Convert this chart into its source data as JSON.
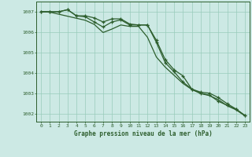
{
  "title": "Graphe pression niveau de la mer (hPa)",
  "background_color": "#cce9e4",
  "plot_bg_color": "#cce9e4",
  "grid_color": "#99ccbb",
  "line_color": "#2d5e2d",
  "marker_color": "#2d5e2d",
  "xlim": [
    -0.5,
    23.5
  ],
  "ylim": [
    1001.6,
    1007.5
  ],
  "xticks": [
    0,
    1,
    2,
    3,
    4,
    5,
    6,
    7,
    8,
    9,
    10,
    11,
    12,
    13,
    14,
    15,
    16,
    17,
    18,
    19,
    20,
    21,
    22,
    23
  ],
  "yticks": [
    1002,
    1003,
    1004,
    1005,
    1006,
    1007
  ],
  "series1_x": [
    0,
    1,
    2,
    3,
    4,
    5,
    6,
    7,
    8,
    9,
    10,
    11,
    12,
    13,
    14,
    15,
    16,
    17,
    18,
    19,
    20,
    21,
    22,
    23
  ],
  "series1_y": [
    1007.0,
    1007.0,
    1007.0,
    1007.1,
    1006.8,
    1006.8,
    1006.7,
    1006.5,
    1006.65,
    1006.65,
    1006.4,
    1006.35,
    1006.35,
    1005.6,
    1004.65,
    1004.15,
    1003.85,
    1003.2,
    1003.05,
    1003.0,
    1002.78,
    1002.48,
    1002.22,
    1001.9
  ],
  "series2_x": [
    0,
    1,
    2,
    3,
    4,
    5,
    6,
    7,
    8,
    9,
    10,
    11,
    12,
    13,
    14,
    15,
    16,
    17,
    18,
    19,
    20,
    21,
    22,
    23
  ],
  "series2_y": [
    1007.0,
    1007.0,
    1007.0,
    1007.1,
    1006.8,
    1006.75,
    1006.5,
    1006.25,
    1006.5,
    1006.6,
    1006.35,
    1006.35,
    1006.35,
    1005.5,
    1004.5,
    1004.05,
    1003.55,
    1003.2,
    1003.0,
    1002.9,
    1002.6,
    1002.4,
    1002.2,
    1001.9
  ],
  "series3_x": [
    0,
    1,
    2,
    3,
    4,
    5,
    6,
    7,
    8,
    9,
    10,
    11,
    12,
    13,
    14,
    15,
    16,
    17,
    18,
    19,
    20,
    21,
    22,
    23
  ],
  "series3_y": [
    1007.0,
    1006.98,
    1006.88,
    1006.78,
    1006.68,
    1006.58,
    1006.38,
    1005.98,
    1006.15,
    1006.35,
    1006.28,
    1006.28,
    1005.75,
    1004.78,
    1004.28,
    1003.88,
    1003.48,
    1003.18,
    1002.98,
    1002.88,
    1002.68,
    1002.38,
    1002.18,
    1001.88
  ]
}
